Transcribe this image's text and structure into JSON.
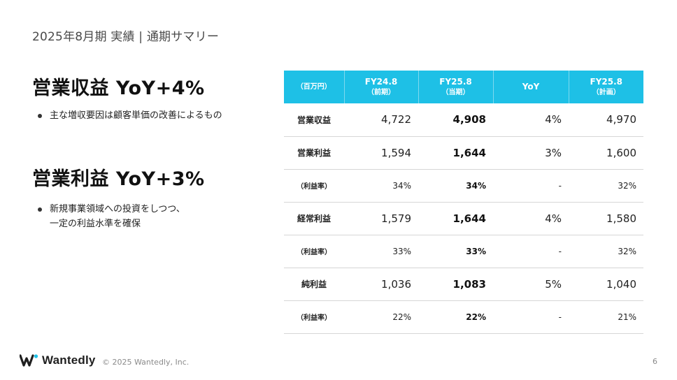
{
  "page_title": "2025年8月期 実績 | 通期サマリー",
  "highlights": [
    {
      "headline": "営業収益 YoY+4%",
      "bullet": "主な増収要因は顧客単価の改善によるもの"
    },
    {
      "headline": "営業利益 YoY+3%",
      "bullet": "新規事業領域への投資をしつつ、\n一定の利益水準を確保"
    }
  ],
  "table": {
    "header": {
      "unit": "（百万円）",
      "columns": [
        {
          "title": "FY24.8",
          "sub": "（前期）"
        },
        {
          "title": "FY25.8",
          "sub": "（当期）"
        },
        {
          "title": "YoY",
          "sub": ""
        },
        {
          "title": "FY25.8",
          "sub": "（計画）"
        }
      ]
    },
    "rows": [
      {
        "label": "営業収益",
        "prev": "4,722",
        "cur": "4,908",
        "yoy": "4%",
        "plan": "4,970"
      },
      {
        "label": "営業利益",
        "prev": "1,594",
        "cur": "1,644",
        "yoy": "3%",
        "plan": "1,600"
      },
      {
        "label": "（利益率）",
        "prev": "34%",
        "cur": "34%",
        "yoy": "-",
        "plan": "32%"
      },
      {
        "label": "経常利益",
        "prev": "1,579",
        "cur": "1,644",
        "yoy": "4%",
        "plan": "1,580"
      },
      {
        "label": "（利益率）",
        "prev": "33%",
        "cur": "33%",
        "yoy": "-",
        "plan": "32%"
      },
      {
        "label": "純利益",
        "prev": "1,036",
        "cur": "1,083",
        "yoy": "5%",
        "plan": "1,040"
      },
      {
        "label": "（利益率）",
        "prev": "22%",
        "cur": "22%",
        "yoy": "-",
        "plan": "21%"
      }
    ]
  },
  "footer": {
    "brand": "Wantedly",
    "copyright": "© 2025 Wantedly, Inc.",
    "page_number": "6",
    "logo_icon": "wantedly-w-logo-icon"
  },
  "colors": {
    "header_bg": "#1ec0e6",
    "logo_dot": "#1ec0e6"
  }
}
